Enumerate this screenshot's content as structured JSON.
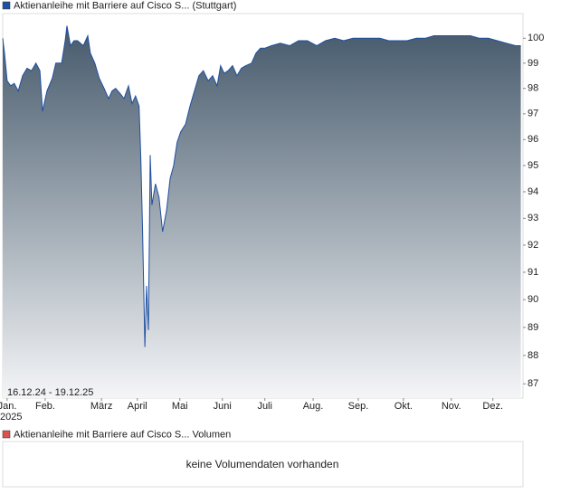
{
  "chart_data": [
    {
      "type": "area",
      "log_scale": true,
      "grid": false,
      "annotation": "16.12.24 - 19.12.25",
      "x_sublabel": "2025",
      "series": [
        {
          "name": "Aktienanleihe mit Barriere auf Cisco S... (Stuttgart)",
          "color": "#1f4fa0",
          "x": [
            -0.1,
            -0.06,
            0,
            0.08,
            0.16,
            0.25,
            0.35,
            0.45,
            0.55,
            0.65,
            0.74,
            0.8,
            0.9,
            1.02,
            1.1,
            1.23,
            1.31,
            1.35,
            1.43,
            1.51,
            1.59,
            1.72,
            1.82,
            1.88,
            1.98,
            2.08,
            2.19,
            2.29,
            2.37,
            2.45,
            2.55,
            2.64,
            2.74,
            2.82,
            2.9,
            2.98,
            3.02,
            3.06,
            3.11,
            3.15,
            3.19,
            3.23,
            3.27,
            3.35,
            3.43,
            3.51,
            3.6,
            3.68,
            3.76,
            3.84,
            3.92,
            4.03,
            4.13,
            4.23,
            4.33,
            4.43,
            4.54,
            4.64,
            4.74,
            4.82,
            4.9,
            4.99,
            5.09,
            5.19,
            5.29,
            5.39,
            5.52,
            5.62,
            5.72,
            5.82,
            5.97,
            6.17,
            6.38,
            6.58,
            6.78,
            6.99,
            7.19,
            7.4,
            7.6,
            7.81,
            8.01,
            8.21,
            8.42,
            8.62,
            8.83,
            9.03,
            9.24,
            9.44,
            9.64,
            9.85,
            10.05,
            10.26,
            10.46,
            10.67,
            10.87,
            11.07,
            11.28,
            11.48,
            11.6
          ],
          "values": [
            100.0,
            99.4,
            98.3,
            98.1,
            98.2,
            97.9,
            98.5,
            98.8,
            98.7,
            99.0,
            98.7,
            97.1,
            97.9,
            98.4,
            99.0,
            99.0,
            99.9,
            100.5,
            99.7,
            99.9,
            99.9,
            99.7,
            100.1,
            99.4,
            99.0,
            98.4,
            98.0,
            97.6,
            97.9,
            98.0,
            97.8,
            97.6,
            98.1,
            97.4,
            97.7,
            97.3,
            95.2,
            92.5,
            88.3,
            90.5,
            88.9,
            95.4,
            93.5,
            94.3,
            93.8,
            92.5,
            93.3,
            94.5,
            95.0,
            95.9,
            96.3,
            96.6,
            97.3,
            97.9,
            98.5,
            98.7,
            98.3,
            98.5,
            98.1,
            98.9,
            98.6,
            98.7,
            98.9,
            98.5,
            98.8,
            98.9,
            99.0,
            99.4,
            99.6,
            99.6,
            99.7,
            99.8,
            99.7,
            99.9,
            99.9,
            99.7,
            99.9,
            100.0,
            99.9,
            100.0,
            100.0,
            100.0,
            100.0,
            99.9,
            99.9,
            99.9,
            100.0,
            100.0,
            100.1,
            100.1,
            100.1,
            100.1,
            100.1,
            100.0,
            100.0,
            99.9,
            99.8,
            99.7,
            99.7
          ]
        }
      ],
      "xlim": [
        -0.1,
        11.65
      ],
      "xticks": [
        {
          "value": 0,
          "label": "Jan."
        },
        {
          "value": 0.86,
          "label": "Feb."
        },
        {
          "value": 2.13,
          "label": "März"
        },
        {
          "value": 2.94,
          "label": "April"
        },
        {
          "value": 3.9,
          "label": "Mai"
        },
        {
          "value": 4.86,
          "label": "Juni"
        },
        {
          "value": 5.82,
          "label": "Juli"
        },
        {
          "value": 6.91,
          "label": "Aug."
        },
        {
          "value": 7.93,
          "label": "Sep."
        },
        {
          "value": 8.95,
          "label": "Okt."
        },
        {
          "value": 10.03,
          "label": "Nov."
        },
        {
          "value": 10.97,
          "label": "Dez."
        }
      ],
      "ylim": [
        86.5,
        101
      ],
      "yticks": [
        87,
        88,
        89,
        90,
        91,
        92,
        93,
        94,
        95,
        96,
        97,
        98,
        99,
        100
      ]
    },
    {
      "type": "volume",
      "note": "keine Volumendaten vorhanden",
      "series": [
        {
          "name": "Aktienanleihe mit Barriere auf Cisco S... Volumen",
          "color": "#d9534f"
        }
      ]
    }
  ]
}
